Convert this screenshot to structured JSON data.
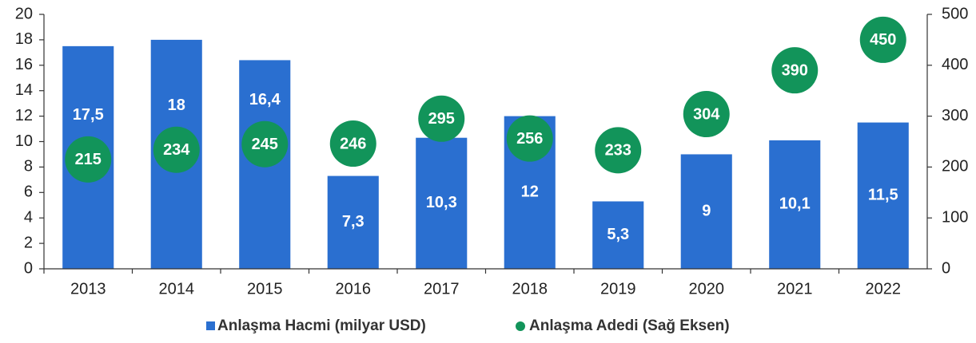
{
  "chart_data": {
    "type": "bar",
    "categories": [
      "2013",
      "2014",
      "2015",
      "2016",
      "2017",
      "2018",
      "2019",
      "2020",
      "2021",
      "2022"
    ],
    "series": [
      {
        "name": "Anlaşma Hacmi (milyar USD)",
        "color": "#2a6fd0",
        "type": "bar",
        "values": [
          17.5,
          18,
          16.4,
          7.3,
          10.3,
          12,
          5.3,
          9,
          10.1,
          11.5
        ],
        "value_labels": [
          "17,5",
          "18",
          "16,4",
          "7,3",
          "10,3",
          "12",
          "5,3",
          "9",
          "10,1",
          "11,5"
        ]
      },
      {
        "name": "Anlaşma Adedi (Sağ Eksen)",
        "color": "#12945a",
        "type": "scatter",
        "axis": "y2",
        "values": [
          215,
          234,
          245,
          246,
          295,
          256,
          233,
          304,
          390,
          450
        ]
      }
    ],
    "ylim": [
      0,
      20
    ],
    "yticks": [
      0,
      2,
      4,
      6,
      8,
      10,
      12,
      14,
      16,
      18,
      20
    ],
    "y2lim": [
      0,
      500
    ],
    "y2ticks": [
      0,
      100,
      200,
      300,
      400,
      500
    ],
    "legend": "bottom"
  }
}
